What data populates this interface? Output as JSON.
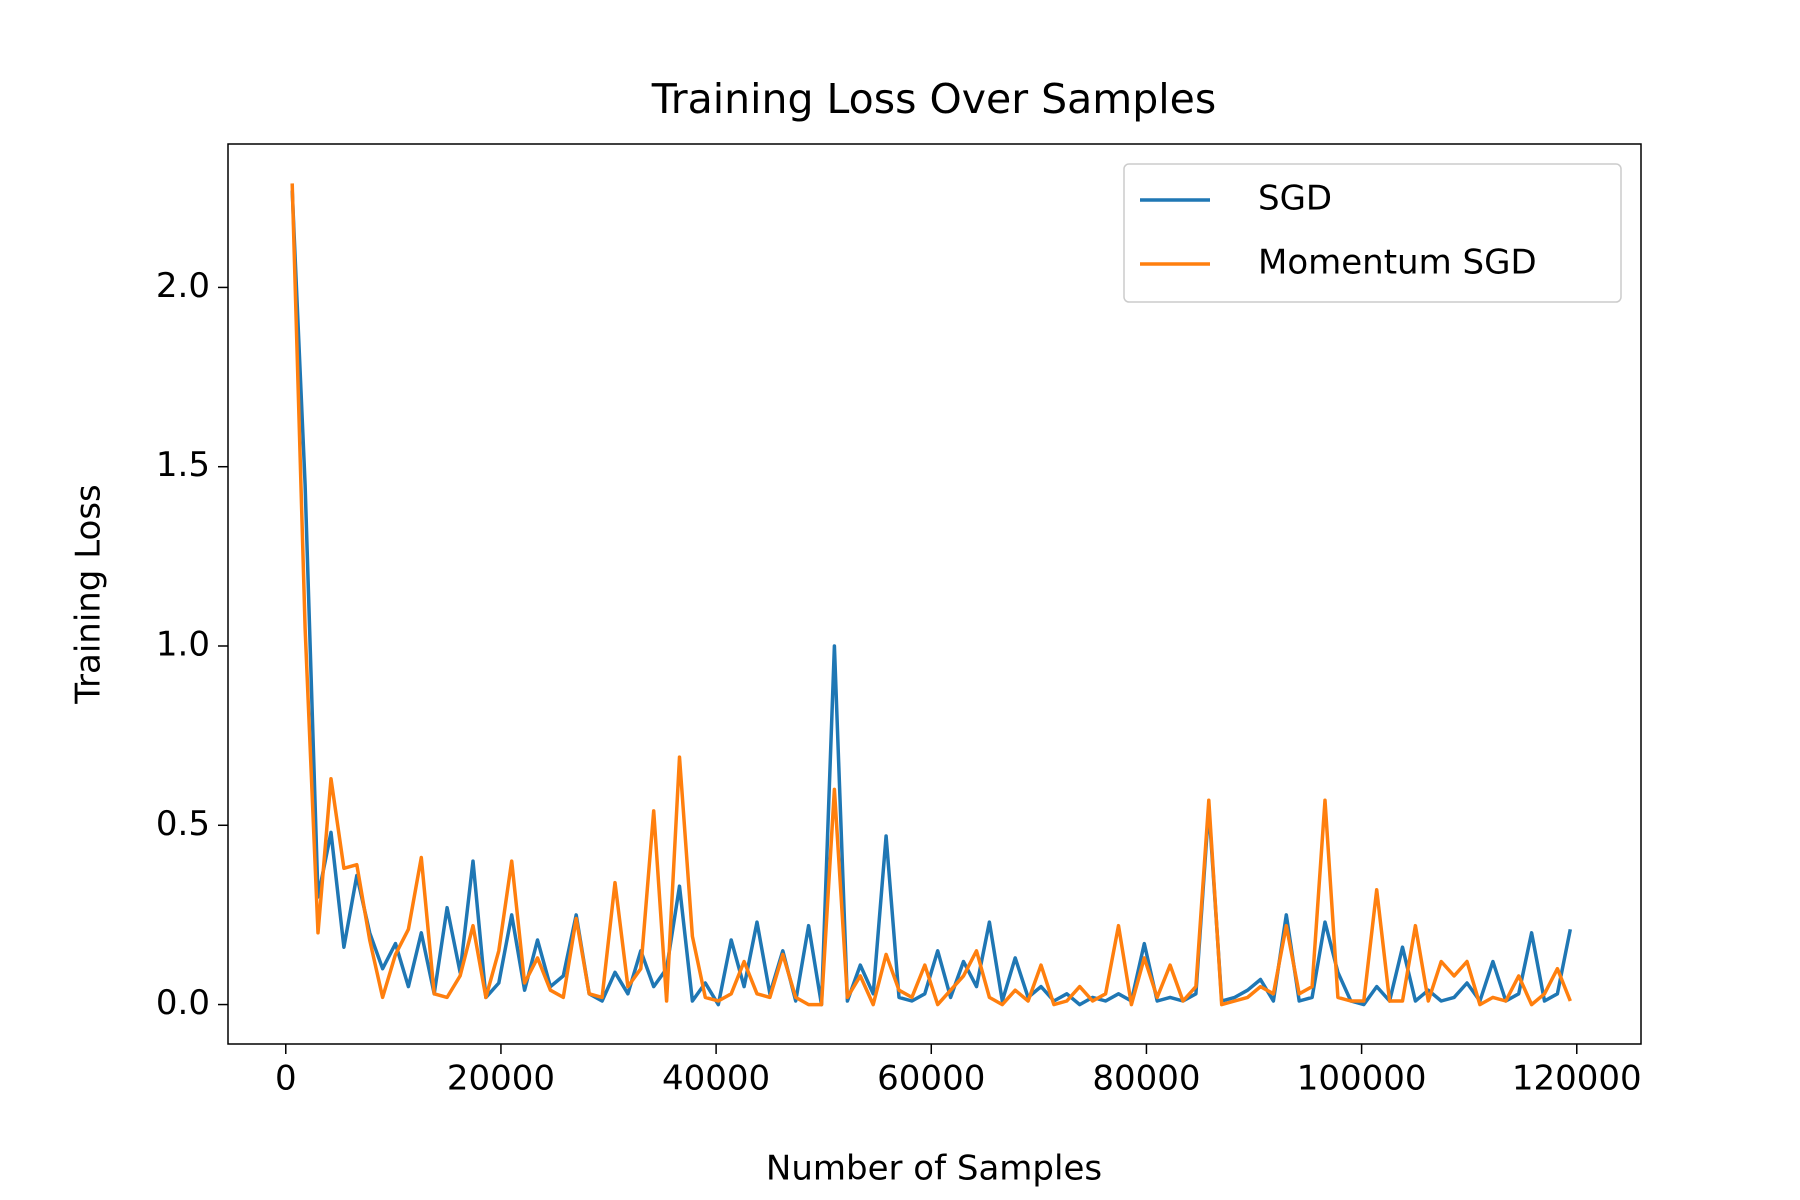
{
  "chart_data": {
    "type": "line",
    "title": "Training Loss Over Samples",
    "x_label": "Number of Samples",
    "y_label": "Training Loss",
    "x": [
      600,
      1800,
      3000,
      4200,
      5400,
      6600,
      7800,
      9000,
      10200,
      11400,
      12600,
      13800,
      15000,
      16200,
      17400,
      18600,
      19800,
      21000,
      22200,
      23400,
      24600,
      25800,
      27000,
      28200,
      29400,
      30600,
      31800,
      33000,
      34200,
      35400,
      36600,
      37800,
      39000,
      40200,
      41400,
      42600,
      43800,
      45000,
      46200,
      47400,
      48600,
      49800,
      51000,
      52200,
      53400,
      54600,
      55800,
      57000,
      58200,
      59400,
      60600,
      61800,
      63000,
      64200,
      65400,
      66600,
      67800,
      69000,
      70200,
      71400,
      72600,
      73800,
      75000,
      76200,
      77400,
      78600,
      79800,
      81000,
      82200,
      83400,
      84600,
      85800,
      87000,
      88200,
      89400,
      90600,
      91800,
      93000,
      94200,
      95400,
      96600,
      97800,
      99000,
      100200,
      101400,
      102600,
      103800,
      105000,
      106200,
      107400,
      108600,
      109800,
      111000,
      112200,
      113400,
      114600,
      115800,
      117000,
      118200,
      119400
    ],
    "series": [
      {
        "name": "SGD",
        "color": "#1f77b4",
        "values": [
          2.27,
          1.45,
          0.3,
          0.48,
          0.16,
          0.36,
          0.2,
          0.1,
          0.17,
          0.05,
          0.2,
          0.03,
          0.27,
          0.09,
          0.4,
          0.02,
          0.06,
          0.25,
          0.04,
          0.18,
          0.05,
          0.08,
          0.25,
          0.03,
          0.01,
          0.09,
          0.03,
          0.15,
          0.05,
          0.1,
          0.33,
          0.01,
          0.06,
          0.0,
          0.18,
          0.05,
          0.23,
          0.03,
          0.15,
          0.01,
          0.22,
          0.0,
          1.0,
          0.01,
          0.11,
          0.03,
          0.47,
          0.02,
          0.01,
          0.03,
          0.15,
          0.02,
          0.12,
          0.05,
          0.23,
          0.01,
          0.13,
          0.02,
          0.05,
          0.01,
          0.03,
          0.0,
          0.02,
          0.01,
          0.03,
          0.01,
          0.17,
          0.01,
          0.02,
          0.01,
          0.03,
          0.55,
          0.01,
          0.02,
          0.04,
          0.07,
          0.01,
          0.25,
          0.01,
          0.02,
          0.23,
          0.09,
          0.01,
          0.0,
          0.05,
          0.01,
          0.16,
          0.01,
          0.04,
          0.01,
          0.02,
          0.06,
          0.01,
          0.12,
          0.01,
          0.03,
          0.2,
          0.01,
          0.03,
          0.21
        ]
      },
      {
        "name": "Momentum SGD",
        "color": "#ff7f0e",
        "values": [
          2.29,
          1.05,
          0.2,
          0.63,
          0.38,
          0.39,
          0.18,
          0.02,
          0.14,
          0.21,
          0.41,
          0.03,
          0.02,
          0.08,
          0.22,
          0.02,
          0.15,
          0.4,
          0.06,
          0.13,
          0.04,
          0.02,
          0.24,
          0.03,
          0.02,
          0.34,
          0.05,
          0.1,
          0.54,
          0.01,
          0.69,
          0.19,
          0.02,
          0.01,
          0.03,
          0.12,
          0.03,
          0.02,
          0.14,
          0.02,
          0.0,
          0.0,
          0.6,
          0.02,
          0.08,
          0.0,
          0.14,
          0.04,
          0.02,
          0.11,
          0.0,
          0.04,
          0.08,
          0.15,
          0.02,
          0.0,
          0.04,
          0.01,
          0.11,
          0.0,
          0.01,
          0.05,
          0.01,
          0.03,
          0.22,
          0.0,
          0.13,
          0.02,
          0.11,
          0.01,
          0.05,
          0.57,
          0.0,
          0.01,
          0.02,
          0.05,
          0.03,
          0.22,
          0.03,
          0.05,
          0.57,
          0.02,
          0.01,
          0.01,
          0.32,
          0.01,
          0.01,
          0.22,
          0.01,
          0.12,
          0.08,
          0.12,
          0.0,
          0.02,
          0.01,
          0.08,
          0.0,
          0.03,
          0.1,
          0.01
        ]
      }
    ],
    "xlim": [
      -5370,
      125970
    ],
    "xticks": [
      0,
      20000,
      40000,
      60000,
      80000,
      100000,
      120000
    ],
    "ylim": [
      -0.11,
      2.4
    ],
    "yticks": [
      {
        "value": 0,
        "label": "0.0"
      },
      0.5,
      {
        "value": 1,
        "label": "1.0"
      },
      1.5,
      {
        "value": 2,
        "label": "2.0"
      }
    ],
    "legend": "upper right",
    "grid": false
  }
}
